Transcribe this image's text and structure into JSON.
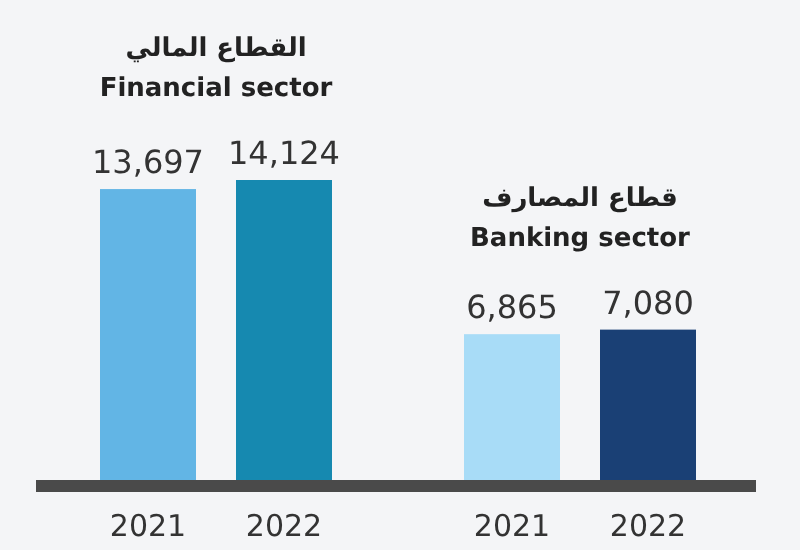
{
  "chart_data": {
    "type": "bar",
    "categories": [
      "2021",
      "2022",
      "2021",
      "2022"
    ],
    "values": [
      13697,
      14124,
      6865,
      7080
    ],
    "colors": [
      "#62b5e5",
      "#1689b0",
      "#a8dcf7",
      "#1a4075"
    ],
    "data_labels": true,
    "value_labels": [
      "13,697",
      "14,124",
      "6,865",
      "7,080"
    ],
    "annotations": [
      "القطاع المالي",
      "Financial sector",
      "قطاع المصارف",
      "Banking sector"
    ]
  }
}
